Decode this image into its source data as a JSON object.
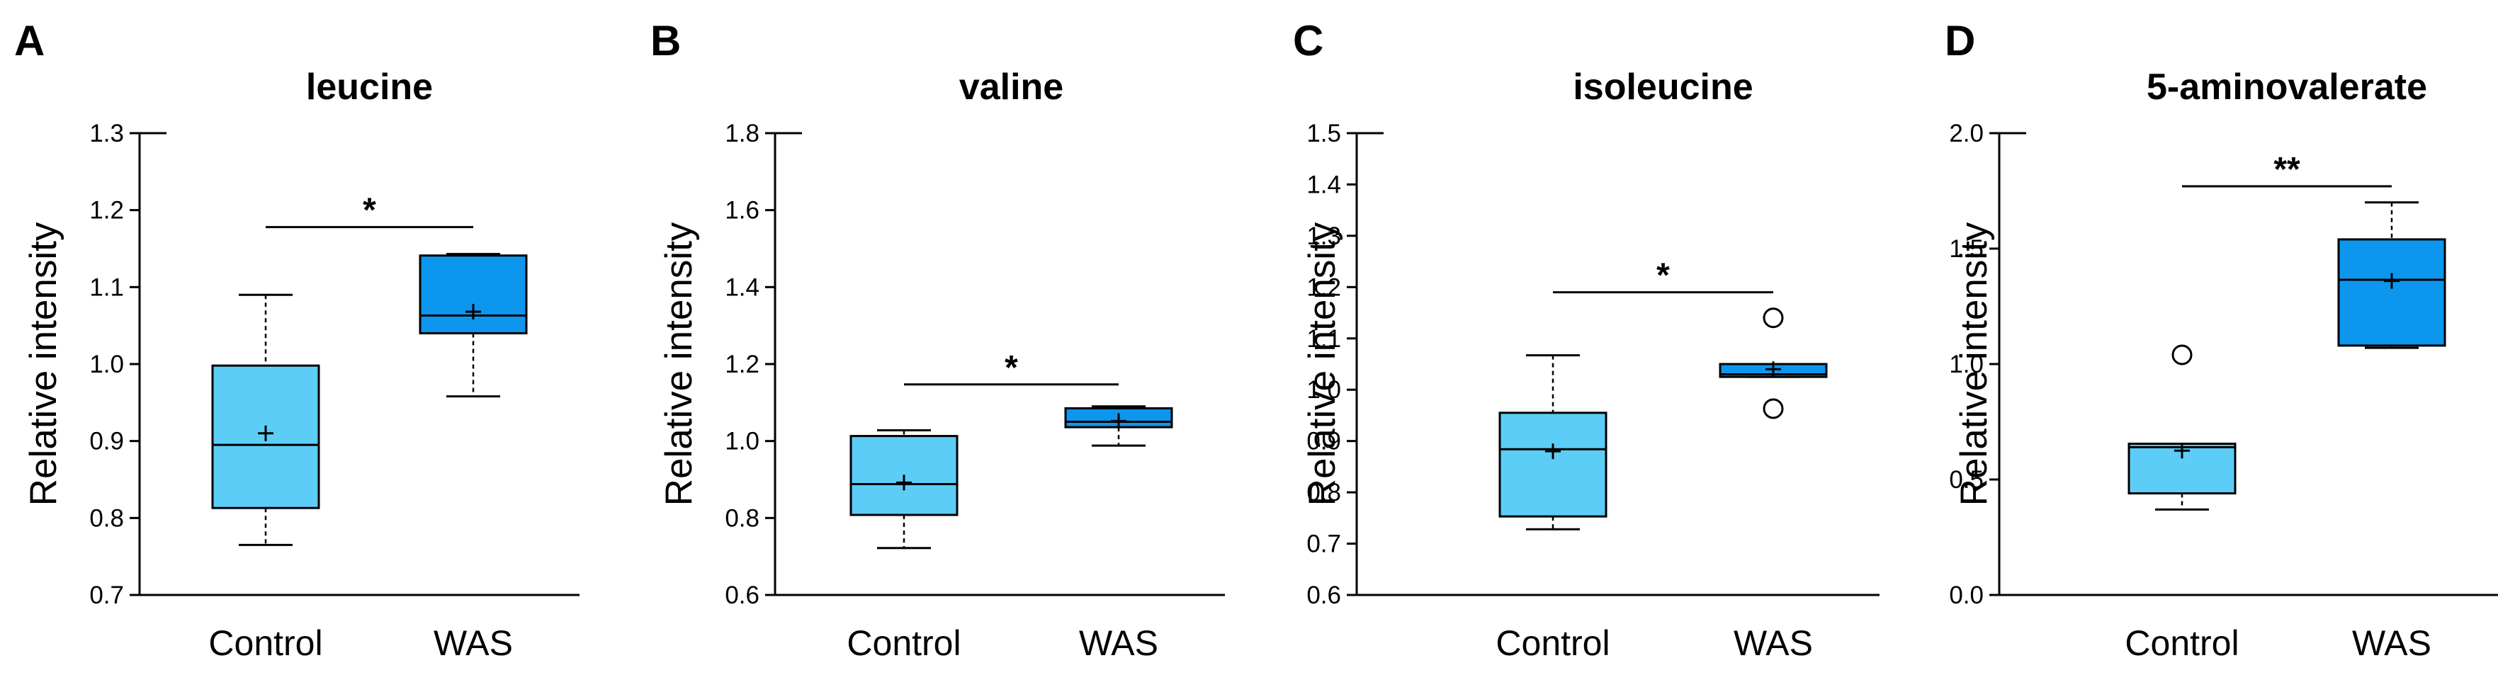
{
  "colors": {
    "control_fill": "#5ccdf7",
    "was_fill": "#0d96ee",
    "axis": "#000000"
  },
  "chart_data": [
    {
      "type": "boxplot",
      "panel": "A",
      "title": "leucine",
      "ylabel": "Relative intensity",
      "categories": [
        "Control",
        "WAS"
      ],
      "ylim": [
        0.7,
        1.3
      ],
      "yticks": [
        "0.7",
        "0.8",
        "0.9",
        "1.0",
        "1.1",
        "1.2",
        "1.3"
      ],
      "boxes": [
        {
          "name": "Control",
          "min": 0.765,
          "q1": 0.813,
          "median": 0.895,
          "q3": 0.998,
          "max": 1.09,
          "mean": 0.91,
          "outliers": []
        },
        {
          "name": "WAS",
          "min": 0.958,
          "q1": 1.04,
          "median": 1.063,
          "q3": 1.141,
          "max": 1.143,
          "mean": 1.068,
          "outliers": []
        }
      ],
      "significance": {
        "label": "*",
        "y": 1.178
      }
    },
    {
      "type": "boxplot",
      "panel": "B",
      "title": "valine",
      "ylabel": "Relative intensity",
      "categories": [
        "Control",
        "WAS"
      ],
      "ylim": [
        0.6,
        1.8
      ],
      "yticks": [
        "0.6",
        "0.8",
        "1.0",
        "1.2",
        "1.4",
        "1.6",
        "1.8"
      ],
      "boxes": [
        {
          "name": "Control",
          "min": 0.722,
          "q1": 0.808,
          "median": 0.888,
          "q3": 1.013,
          "max": 1.028,
          "mean": 0.892,
          "outliers": []
        },
        {
          "name": "WAS",
          "min": 0.988,
          "q1": 1.036,
          "median": 1.05,
          "q3": 1.085,
          "max": 1.09,
          "mean": 1.052,
          "outliers": []
        }
      ],
      "significance": {
        "label": "*",
        "y": 1.147
      }
    },
    {
      "type": "boxplot",
      "panel": "C",
      "title": "isoleucine",
      "ylabel": "Relative intensity",
      "categories": [
        "Control",
        "WAS"
      ],
      "ylim": [
        0.6,
        1.5
      ],
      "yticks": [
        "0.6",
        "0.7",
        "0.8",
        "0.9",
        "1.0",
        "1.1",
        "1.2",
        "1.3",
        "1.4",
        "1.5"
      ],
      "boxes": [
        {
          "name": "Control",
          "min": 0.728,
          "q1": 0.753,
          "median": 0.884,
          "q3": 0.955,
          "max": 1.067,
          "mean": 0.88,
          "outliers": []
        },
        {
          "name": "WAS",
          "min": 1.025,
          "q1": 1.025,
          "median": 1.03,
          "q3": 1.05,
          "max": 1.05,
          "mean": 1.04,
          "outliers": [
            1.14,
            0.963
          ]
        }
      ],
      "significance": {
        "label": "*",
        "y": 1.19
      }
    },
    {
      "type": "boxplot",
      "panel": "D",
      "title": "5-aminovalerate",
      "ylabel": "Relative intensity",
      "categories": [
        "Control",
        "WAS"
      ],
      "ylim": [
        0.0,
        2.0
      ],
      "yticks": [
        "0.0",
        "0.5",
        "1.0",
        "1.5",
        "2.0"
      ],
      "boxes": [
        {
          "name": "Control",
          "min": 0.37,
          "q1": 0.44,
          "median": 0.64,
          "q3": 0.655,
          "max": 0.655,
          "mean": 0.625,
          "outliers": [
            1.04
          ]
        },
        {
          "name": "WAS",
          "min": 1.07,
          "q1": 1.08,
          "median": 1.365,
          "q3": 1.54,
          "max": 1.7,
          "mean": 1.36,
          "outliers": []
        }
      ],
      "significance": {
        "label": "**",
        "y": 1.77
      }
    }
  ]
}
